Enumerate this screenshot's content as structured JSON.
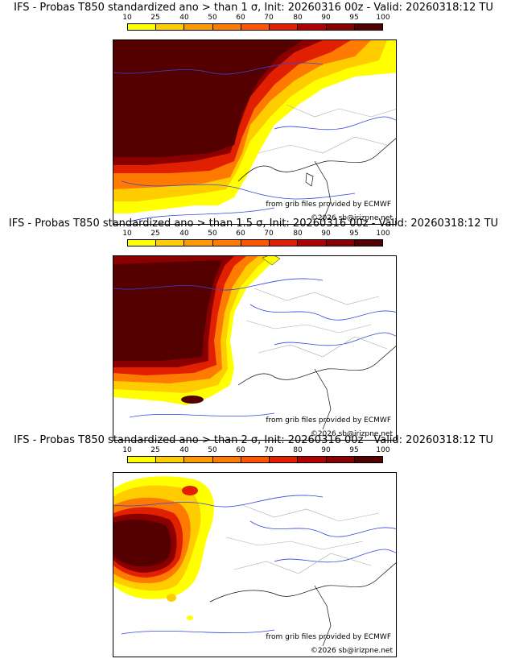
{
  "colors": {
    "c10": "#ffff00",
    "c25": "#ffcc00",
    "c40": "#ff9900",
    "c50": "#ff7a00",
    "c60": "#ff5500",
    "c70": "#e02000",
    "c80": "#b00000",
    "c90": "#8a0000",
    "c95": "#6a0000",
    "c100": "#550000"
  },
  "colorbar": {
    "ticks": [
      "10",
      "25",
      "40",
      "50",
      "60",
      "70",
      "80",
      "90",
      "95",
      "100"
    ]
  },
  "credits": {
    "source": "from grib files provided by ECMWF",
    "copyright": "©2026 sb@irizpne.net"
  },
  "panels": [
    {
      "title": "IFS - Probas T850  standardized ano > than 1 σ, Init: 20260316 00z - Valid: 20260318:12 TU"
    },
    {
      "title": "IFS - Probas T850  standardized ano > than 1.5 σ, Init: 20260316 00z - Valid: 20260318:12 TU"
    },
    {
      "title": "IFS - Probas T850  standardized ano > than 2 σ, Init: 20260316 00z - Valid: 20260318:12 TU"
    }
  ]
}
